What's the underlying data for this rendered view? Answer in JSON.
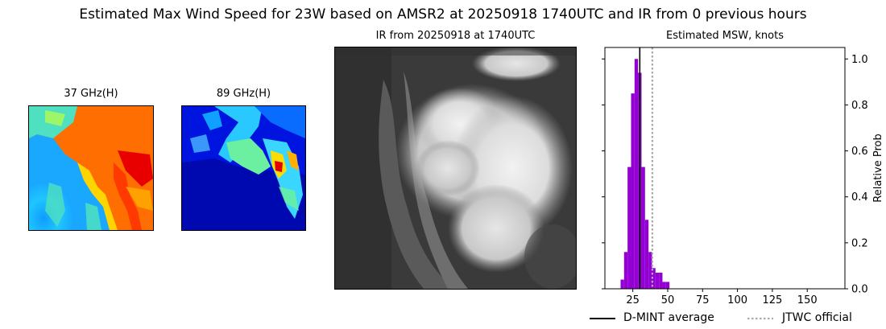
{
  "figure": {
    "title": "Estimated Max Wind Speed for 23W based on AMSR2 at 20250918 1740UTC and IR from 0 previous hours"
  },
  "panels": {
    "ghz37": {
      "title": "37 GHz(H)"
    },
    "ghz89": {
      "title": "89 GHz(H)"
    },
    "ir": {
      "title": "IR from 20250918 at 1740UTC"
    }
  },
  "colors": {
    "histogram": "#9400d3",
    "dmint": "#000000",
    "jtwc": "#aaaaaa"
  },
  "chart_data": {
    "type": "bar",
    "title": "Estimated MSW, knots",
    "xlabel": "",
    "ylabel": "Relative Prob",
    "xlim": [
      5,
      177
    ],
    "ylim": [
      0,
      1.05
    ],
    "x_ticks": [
      "25",
      "50",
      "75",
      "100",
      "125",
      "150"
    ],
    "y_ticks": [
      "0.0",
      "0.2",
      "0.4",
      "0.6",
      "0.8",
      "1.0"
    ],
    "y_axis_side": "right",
    "grid": false,
    "bins": [
      {
        "x": 17.5,
        "value": 0.04
      },
      {
        "x": 20,
        "value": 0.16
      },
      {
        "x": 22.5,
        "value": 0.53
      },
      {
        "x": 25,
        "value": 0.85
      },
      {
        "x": 27.5,
        "value": 1.0
      },
      {
        "x": 30,
        "value": 0.94
      },
      {
        "x": 32.5,
        "value": 0.53
      },
      {
        "x": 35,
        "value": 0.3
      },
      {
        "x": 37.5,
        "value": 0.16
      },
      {
        "x": 40,
        "value": 0.09
      },
      {
        "x": 42.5,
        "value": 0.07
      },
      {
        "x": 45,
        "value": 0.07
      },
      {
        "x": 47.5,
        "value": 0.03
      },
      {
        "x": 50,
        "value": 0.03
      }
    ],
    "bin_width": 2.5,
    "dmint_average": 30,
    "jtwc_official": 39,
    "legend": {
      "placement": "bottom",
      "entries": [
        {
          "label": "D-MINT average",
          "style": "solid"
        },
        {
          "label": "JTWC official",
          "style": "dotted"
        }
      ]
    }
  }
}
